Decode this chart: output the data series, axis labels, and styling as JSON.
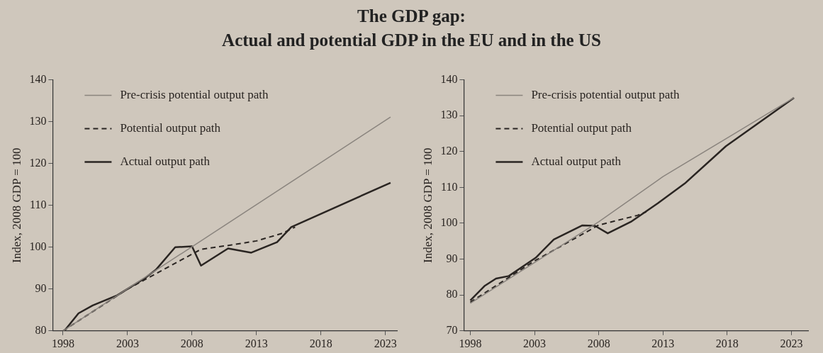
{
  "chart_data": [
    {
      "type": "line",
      "title": "The GDP gap:\nActual and potential GDP in the EU and in the US",
      "ylabel": "Index, 2008 GDP = 100",
      "xlim": [
        1997.2,
        2023.9
      ],
      "xticks": [
        1998,
        2003,
        2008,
        2013,
        2018,
        2023
      ],
      "ylim": [
        80,
        140
      ],
      "yticks": [
        80,
        90,
        100,
        110,
        120,
        130,
        140
      ],
      "grid": false,
      "legend": "top left",
      "marker": "none",
      "series": [
        {
          "name": "Pre-crisis potential output path",
          "color": "#8a847e",
          "line_style": "solid",
          "x": [
            1998,
            2023.4
          ],
          "values": [
            80,
            131.1
          ]
        },
        {
          "name": "Potential output path",
          "color": "#2a2522",
          "line_style": "dashed",
          "x": [
            1998,
            2003,
            2008.7,
            2011,
            2013,
            2015,
            2016
          ],
          "values": [
            80,
            90,
            99.5,
            100.5,
            101.5,
            103.3,
            104.8
          ]
        },
        {
          "name": "Actual output path",
          "color": "#2a2522",
          "line_style": "solid",
          "x": [
            1998.1,
            1999.2,
            2000.3,
            2002.2,
            2004.4,
            2005.2,
            2006.7,
            2008,
            2008.7,
            2010.8,
            2012.6,
            2014.6,
            2015.7,
            2023.4
          ],
          "values": [
            80,
            84.2,
            86.1,
            88.5,
            92.7,
            94.6,
            100,
            100.2,
            95.6,
            99.7,
            98.7,
            101.2,
            104.8,
            115.4
          ]
        }
      ]
    },
    {
      "type": "line",
      "ylabel": "Index, 2008 GDP = 100",
      "xlim": [
        1997.5,
        2024.3
      ],
      "xticks": [
        1998,
        2003,
        2008,
        2013,
        2018,
        2023
      ],
      "ylim": [
        70,
        140
      ],
      "yticks": [
        70,
        80,
        90,
        100,
        110,
        120,
        130,
        140
      ],
      "grid": false,
      "legend": "top left",
      "marker": "none",
      "series": [
        {
          "name": "Pre-crisis potential output path",
          "color": "#8a847e",
          "line_style": "solid",
          "x": [
            1998,
            2008,
            2013,
            2023.2
          ],
          "values": [
            77.7,
            100.4,
            113,
            135
          ]
        },
        {
          "name": "Potential output path",
          "color": "#2a2522",
          "line_style": "dashed",
          "x": [
            1998,
            2003,
            2008,
            2011,
            2011.7
          ],
          "values": [
            78,
            89.5,
            99.5,
            102.2,
            103.2
          ]
        },
        {
          "name": "Actual output path",
          "color": "#2a2522",
          "line_style": "solid",
          "x": [
            1998,
            1999.1,
            2000,
            2001,
            2003.1,
            2004.5,
            2006.7,
            2007.7,
            2008.7,
            2010.5,
            2012.6,
            2014.7,
            2017.9,
            2023.2
          ],
          "values": [
            78.5,
            82.5,
            84.6,
            85.3,
            90.4,
            95.5,
            99.4,
            99.3,
            97.2,
            100.4,
            105.6,
            111.1,
            121.5,
            135
          ]
        }
      ]
    }
  ]
}
